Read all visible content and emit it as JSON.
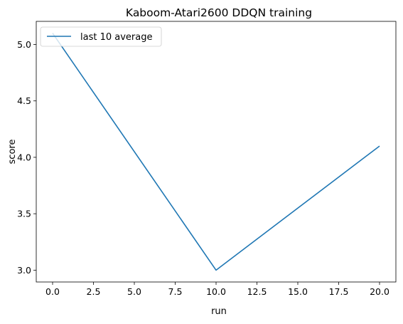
{
  "chart_data": {
    "type": "line",
    "title": "Kaboom-Atari2600 DDQN training",
    "xlabel": "run",
    "ylabel": "score",
    "xlim": [
      -1,
      21
    ],
    "ylim": [
      2.895,
      5.205
    ],
    "xticks": [
      0.0,
      2.5,
      5.0,
      7.5,
      10.0,
      12.5,
      15.0,
      17.5,
      20.0
    ],
    "xtick_labels": [
      "0.0",
      "2.5",
      "5.0",
      "7.5",
      "10.0",
      "12.5",
      "15.0",
      "17.5",
      "20.0"
    ],
    "yticks": [
      3.0,
      3.5,
      4.0,
      4.5,
      5.0
    ],
    "ytick_labels": [
      "3.0",
      "3.5",
      "4.0",
      "4.5",
      "5.0"
    ],
    "grid": false,
    "legend_position": "top-left",
    "series": [
      {
        "name": "last 10 average",
        "color": "#1f77b4",
        "x": [
          0,
          10,
          20
        ],
        "y": [
          5.1,
          3.0,
          4.1
        ]
      }
    ]
  }
}
